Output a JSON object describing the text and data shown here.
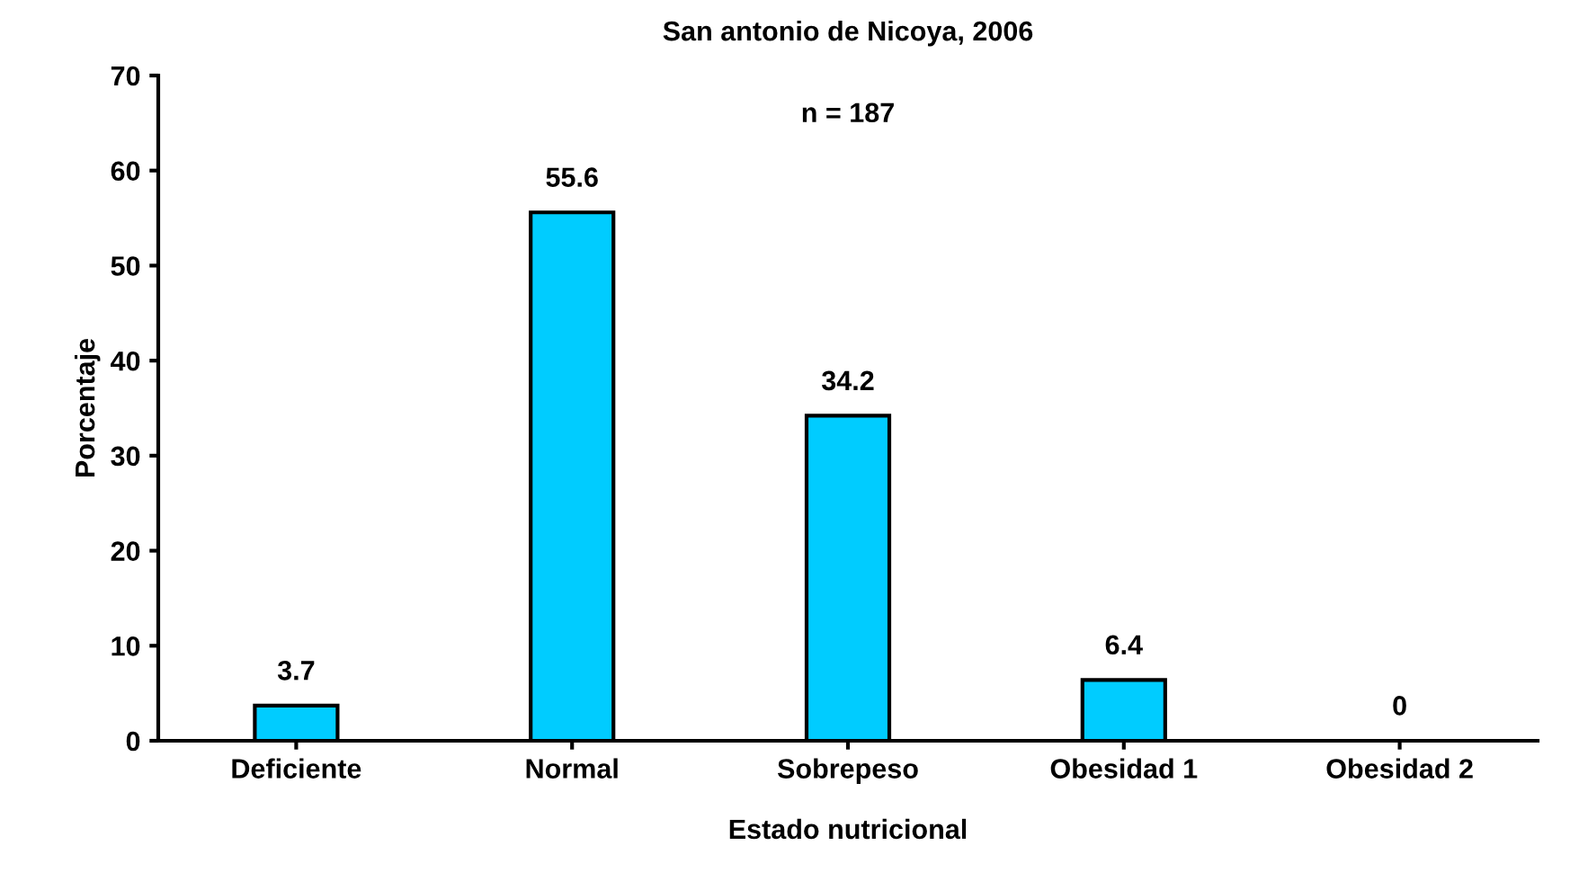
{
  "chart_data": {
    "type": "bar",
    "title": "San antonio de Nicoya, 2006",
    "xlabel": "Estado nutricional",
    "ylabel": "Porcentaje",
    "categories": [
      "Deficiente",
      "Normal",
      "Sobrepeso",
      "Obesidad 1",
      "Obesidad 2"
    ],
    "values": [
      3.7,
      55.6,
      34.2,
      6.4,
      0
    ],
    "color": "#00ccff",
    "ylim": [
      0,
      70
    ],
    "yticks": [
      0,
      10,
      20,
      30,
      40,
      50,
      60,
      70
    ],
    "data_labels": true,
    "grid": false,
    "annotations": [
      "n = 187"
    ]
  }
}
